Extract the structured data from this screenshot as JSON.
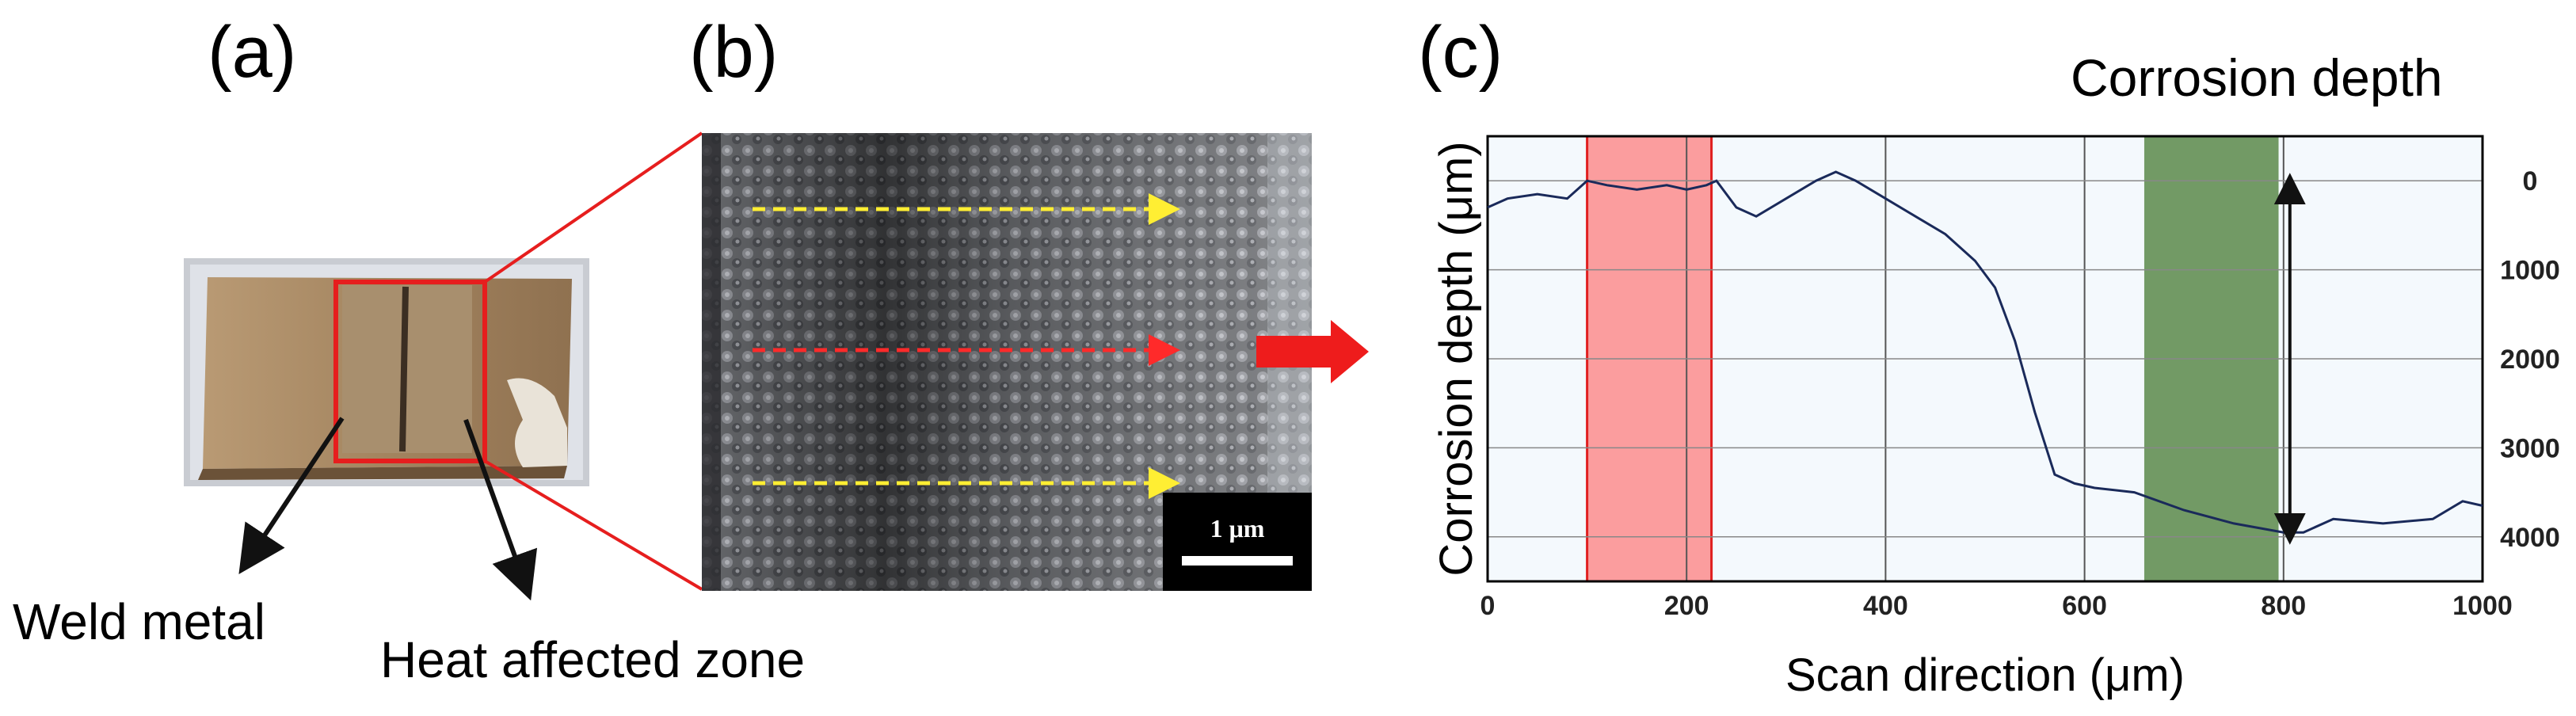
{
  "figure": {
    "panel_a": {
      "label": "(a)",
      "callouts": [
        "Weld metal",
        "Heat affected zone"
      ]
    },
    "panel_b": {
      "label": "(b)",
      "scale_bar": "1 μm"
    },
    "panel_c": {
      "label": "(c)",
      "annotation": "Corrosion depth"
    }
  },
  "chart_data": {
    "type": "line",
    "xlabel": "Scan direction (μm)",
    "ylabel": "Corrosion depth (μm)",
    "xlim": [
      0,
      1000
    ],
    "ylim": [
      -500,
      4500
    ],
    "y_inverted": true,
    "y_axis_side": "right",
    "x_ticks": [
      "0",
      "200",
      "400",
      "600",
      "800",
      "1000"
    ],
    "y_ticks": [
      "0",
      "1000",
      "2000",
      "3000",
      "4000"
    ],
    "grid": true,
    "series": [
      {
        "x": [
          0,
          20,
          50,
          80,
          100,
          120,
          150,
          180,
          200,
          220,
          230,
          250,
          270,
          300,
          330,
          350,
          370,
          400,
          430,
          460,
          490,
          510,
          530,
          550,
          570,
          590,
          610,
          650,
          700,
          750,
          800,
          820,
          850,
          900,
          950,
          980,
          1000
        ],
        "y": [
          300,
          200,
          150,
          200,
          0,
          50,
          100,
          50,
          100,
          50,
          0,
          300,
          400,
          200,
          0,
          -100,
          0,
          200,
          400,
          600,
          900,
          1200,
          1800,
          2600,
          3300,
          3400,
          3450,
          3500,
          3700,
          3850,
          3950,
          3950,
          3800,
          3850,
          3800,
          3600,
          3650
        ]
      }
    ],
    "highlights": [
      {
        "x_range": [
          100,
          225
        ],
        "color": "#ff6b6b"
      },
      {
        "x_range": [
          660,
          795
        ],
        "color": "#5a8a4a"
      }
    ],
    "depth_arrow": {
      "x": 800,
      "y_range": [
        0,
        4000
      ]
    }
  }
}
